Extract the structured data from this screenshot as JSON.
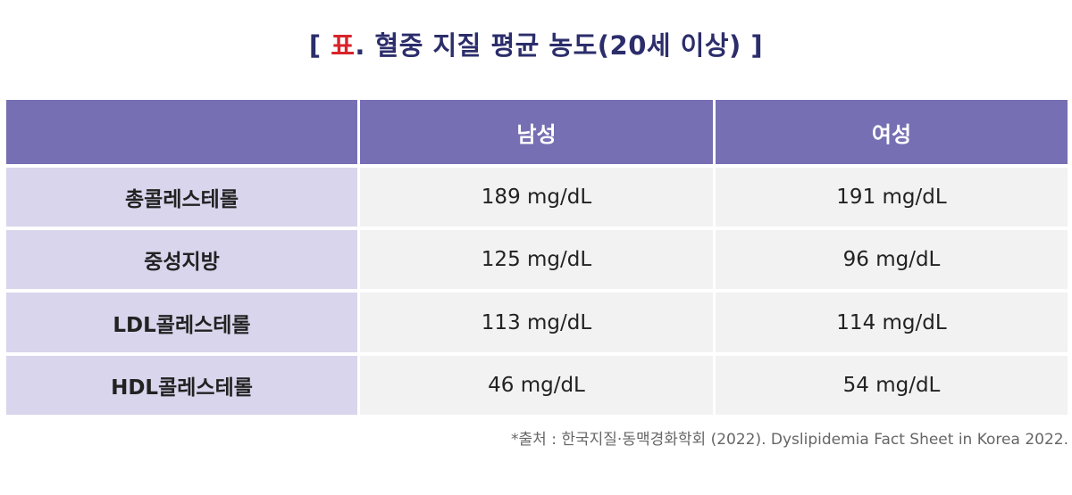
{
  "title": {
    "open_bracket": "[",
    "mark": "표",
    "text": ". 혈중 지질 평균 농도(20세 이상)",
    "close_bracket": "]"
  },
  "table": {
    "headers": [
      "",
      "남성",
      "여성"
    ],
    "rows": [
      {
        "label": "총콜레스테롤",
        "male": "189 mg/dL",
        "female": "191 mg/dL"
      },
      {
        "label": "중성지방",
        "male": "125 mg/dL",
        "female": "96 mg/dL"
      },
      {
        "label": "LDL콜레스테롤",
        "male": "113 mg/dL",
        "female": "114 mg/dL"
      },
      {
        "label": "HDL콜레스테롤",
        "male": "46 mg/dL",
        "female": "54 mg/dL"
      }
    ]
  },
  "source": "*출처 : 한국지질·동맥경화학회 (2022). Dyslipidemia Fact Sheet in Korea 2022.",
  "colors": {
    "title": "#2c2d6b",
    "mark": "#d8232a",
    "header_bg": "#766fb3",
    "row_label_bg": "#d8d5ec",
    "value_bg": "#f2f2f2"
  }
}
